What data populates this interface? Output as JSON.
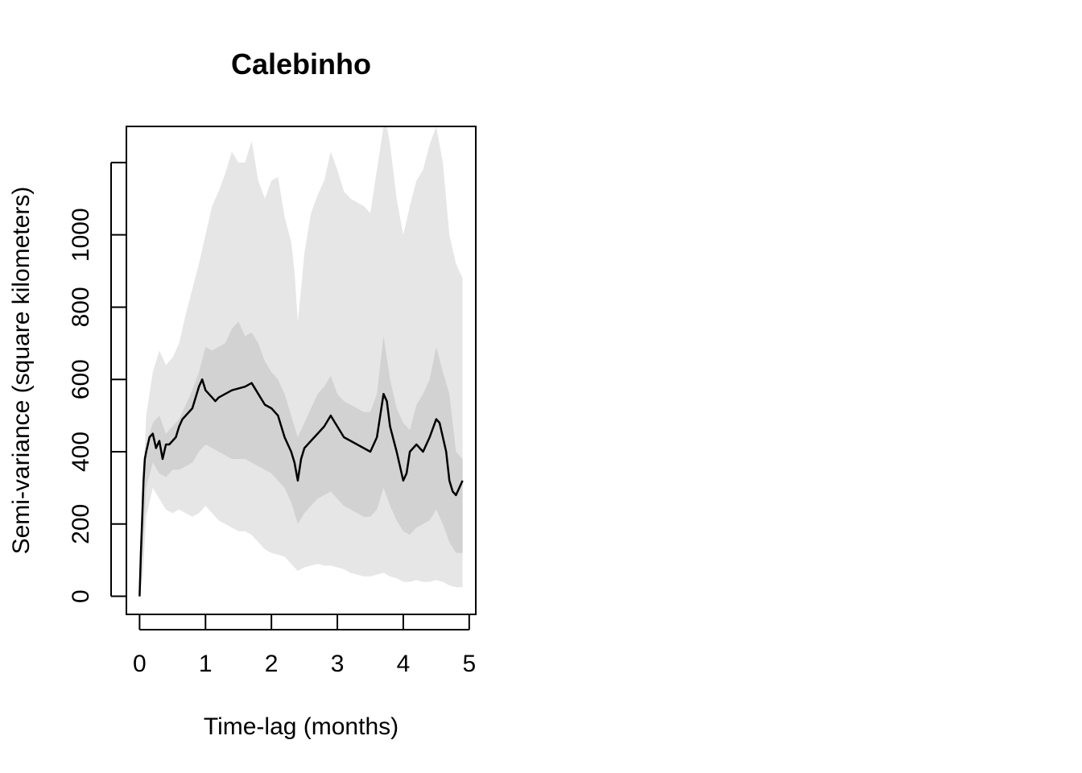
{
  "chart_data": {
    "type": "line",
    "title": "Calebinho",
    "xlabel": "Time-lag (months)",
    "ylabel": "Semi-variance (square kilometers)",
    "xlim": [
      -0.2,
      5.1
    ],
    "ylim": [
      -50,
      1300
    ],
    "x_ticks": [
      0,
      1,
      2,
      3,
      4,
      5
    ],
    "x_tick_labels": [
      "0",
      "1",
      "2",
      "3",
      "4",
      "5"
    ],
    "y_ticks": [
      0,
      200,
      400,
      600,
      800,
      1000,
      1200
    ],
    "y_tick_labels": [
      "0",
      "200",
      "400",
      "600",
      "800",
      "1000",
      ""
    ],
    "grid": false,
    "legend": "none",
    "colors": {
      "line": "#000000",
      "inner_band": "#d2d2d2",
      "outer_band": "#e6e6e6"
    },
    "series": [
      {
        "role": "semi-variance",
        "x": [
          0,
          0.02,
          0.04,
          0.06,
          0.08,
          0.1,
          0.15,
          0.2,
          0.25,
          0.3,
          0.35,
          0.4,
          0.45,
          0.5,
          0.55,
          0.6,
          0.65,
          0.7,
          0.75,
          0.8,
          0.85,
          0.9,
          0.95,
          1.0,
          1.05,
          1.1,
          1.15,
          1.2,
          1.3,
          1.4,
          1.5,
          1.6,
          1.7,
          1.8,
          1.9,
          2.0,
          2.1,
          2.2,
          2.3,
          2.35,
          2.4,
          2.45,
          2.5,
          2.6,
          2.7,
          2.8,
          2.9,
          3.0,
          3.1,
          3.2,
          3.3,
          3.4,
          3.5,
          3.6,
          3.65,
          3.7,
          3.75,
          3.8,
          3.9,
          4.0,
          4.05,
          4.1,
          4.2,
          4.3,
          4.4,
          4.5,
          4.55,
          4.6,
          4.65,
          4.7,
          4.75,
          4.8,
          4.85,
          4.9
        ],
        "y": [
          0,
          120,
          220,
          320,
          380,
          400,
          440,
          450,
          410,
          430,
          380,
          420,
          420,
          430,
          440,
          470,
          490,
          500,
          510,
          520,
          550,
          580,
          600,
          570,
          560,
          550,
          540,
          550,
          560,
          570,
          575,
          580,
          590,
          560,
          530,
          520,
          500,
          440,
          400,
          370,
          320,
          380,
          410,
          430,
          450,
          470,
          500,
          470,
          440,
          430,
          420,
          410,
          400,
          440,
          500,
          560,
          540,
          470,
          400,
          320,
          340,
          400,
          420,
          400,
          440,
          490,
          480,
          440,
          400,
          320,
          290,
          280,
          300,
          320
        ]
      },
      {
        "role": "inner-band-upper",
        "x": [
          0,
          0.05,
          0.1,
          0.2,
          0.3,
          0.4,
          0.5,
          0.6,
          0.7,
          0.8,
          0.9,
          1.0,
          1.1,
          1.2,
          1.3,
          1.4,
          1.5,
          1.6,
          1.7,
          1.8,
          1.9,
          2.0,
          2.1,
          2.2,
          2.3,
          2.4,
          2.5,
          2.6,
          2.7,
          2.8,
          2.9,
          3.0,
          3.1,
          3.2,
          3.3,
          3.4,
          3.5,
          3.6,
          3.7,
          3.8,
          3.9,
          4.0,
          4.1,
          4.2,
          4.3,
          4.4,
          4.5,
          4.6,
          4.7,
          4.8,
          4.9
        ],
        "y": [
          0,
          250,
          420,
          480,
          500,
          450,
          470,
          490,
          530,
          570,
          620,
          690,
          680,
          690,
          700,
          740,
          760,
          720,
          730,
          700,
          650,
          620,
          600,
          560,
          500,
          440,
          480,
          520,
          560,
          580,
          610,
          560,
          540,
          530,
          520,
          510,
          510,
          560,
          720,
          600,
          520,
          480,
          460,
          530,
          560,
          600,
          690,
          620,
          560,
          400,
          380
        ]
      },
      {
        "role": "inner-band-lower",
        "x": [
          0,
          0.05,
          0.1,
          0.2,
          0.3,
          0.4,
          0.5,
          0.6,
          0.7,
          0.8,
          0.9,
          1.0,
          1.1,
          1.2,
          1.3,
          1.4,
          1.5,
          1.6,
          1.7,
          1.8,
          1.9,
          2.0,
          2.1,
          2.2,
          2.3,
          2.4,
          2.5,
          2.6,
          2.7,
          2.8,
          2.9,
          3.0,
          3.1,
          3.2,
          3.3,
          3.4,
          3.5,
          3.6,
          3.7,
          3.8,
          3.9,
          4.0,
          4.1,
          4.2,
          4.3,
          4.4,
          4.5,
          4.6,
          4.7,
          4.8,
          4.9
        ],
        "y": [
          0,
          120,
          300,
          370,
          340,
          330,
          350,
          350,
          360,
          370,
          400,
          420,
          410,
          400,
          390,
          380,
          380,
          380,
          370,
          360,
          350,
          340,
          320,
          300,
          260,
          200,
          230,
          250,
          270,
          280,
          290,
          270,
          250,
          240,
          230,
          220,
          220,
          240,
          300,
          250,
          210,
          180,
          170,
          190,
          200,
          210,
          240,
          200,
          150,
          120,
          120
        ]
      },
      {
        "role": "outer-band-upper",
        "x": [
          0,
          0.05,
          0.1,
          0.2,
          0.3,
          0.4,
          0.5,
          0.6,
          0.7,
          0.8,
          0.9,
          1.0,
          1.1,
          1.2,
          1.3,
          1.4,
          1.5,
          1.6,
          1.7,
          1.8,
          1.9,
          2.0,
          2.1,
          2.2,
          2.3,
          2.35,
          2.4,
          2.45,
          2.5,
          2.6,
          2.7,
          2.8,
          2.9,
          3.0,
          3.1,
          3.2,
          3.3,
          3.4,
          3.5,
          3.6,
          3.7,
          3.75,
          3.8,
          3.9,
          4.0,
          4.1,
          4.2,
          4.3,
          4.4,
          4.5,
          4.6,
          4.7,
          4.8,
          4.9
        ],
        "y": [
          0,
          300,
          500,
          620,
          680,
          640,
          660,
          700,
          780,
          850,
          920,
          1000,
          1080,
          1120,
          1170,
          1230,
          1200,
          1200,
          1260,
          1150,
          1100,
          1150,
          1160,
          1050,
          980,
          900,
          760,
          850,
          950,
          1060,
          1110,
          1150,
          1230,
          1180,
          1120,
          1100,
          1090,
          1080,
          1060,
          1180,
          1300,
          1300,
          1250,
          1100,
          1000,
          1080,
          1150,
          1180,
          1250,
          1300,
          1200,
          1000,
          920,
          880
        ]
      },
      {
        "role": "outer-band-lower",
        "x": [
          0,
          0.05,
          0.1,
          0.2,
          0.3,
          0.4,
          0.5,
          0.6,
          0.7,
          0.8,
          0.9,
          1.0,
          1.1,
          1.2,
          1.3,
          1.4,
          1.5,
          1.6,
          1.7,
          1.8,
          1.9,
          2.0,
          2.1,
          2.2,
          2.3,
          2.4,
          2.5,
          2.6,
          2.7,
          2.8,
          2.9,
          3.0,
          3.1,
          3.2,
          3.3,
          3.4,
          3.5,
          3.6,
          3.7,
          3.8,
          3.9,
          4.0,
          4.1,
          4.2,
          4.3,
          4.4,
          4.5,
          4.6,
          4.7,
          4.8,
          4.9
        ],
        "y": [
          0,
          60,
          220,
          300,
          270,
          240,
          230,
          240,
          230,
          220,
          230,
          250,
          230,
          210,
          200,
          190,
          180,
          180,
          170,
          150,
          130,
          120,
          115,
          110,
          90,
          70,
          80,
          85,
          90,
          85,
          85,
          80,
          75,
          65,
          60,
          55,
          55,
          60,
          65,
          55,
          50,
          40,
          40,
          45,
          40,
          40,
          45,
          40,
          30,
          25,
          25
        ]
      }
    ]
  }
}
